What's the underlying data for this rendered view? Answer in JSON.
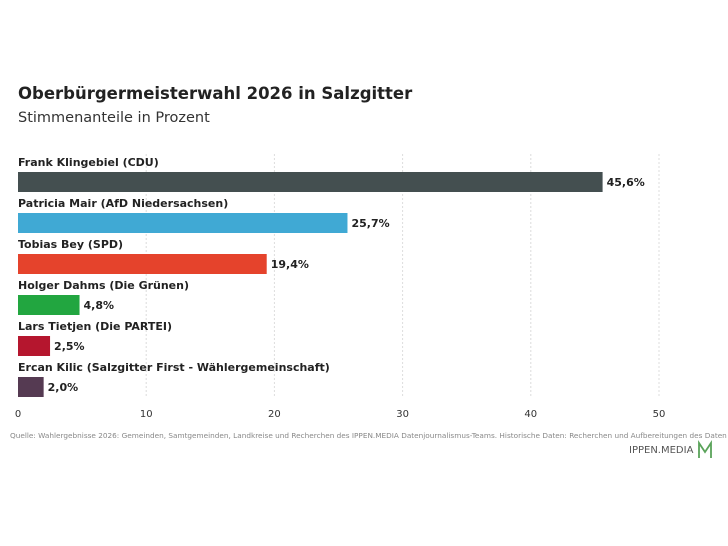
{
  "header": {
    "title": "Oberbürgermeisterwahl 2026 in Salzgitter",
    "subtitle": "Stimmenanteile in Prozent"
  },
  "footer": {
    "source": "Quelle: Wahlergebnisse 2026: Gemeinden, Samtgemeinden, Landkreise und Recherchen des IPPEN.MEDIA Datenjournalismus-Teams. Historische Daten: Recherchen und Aufbereitungen des Daten",
    "brand": "IPPEN.MEDIA"
  },
  "chart_data": {
    "type": "bar",
    "orientation": "horizontal",
    "categories": [
      "Frank Klingebiel (CDU)",
      "Patricia Mair (AfD Niedersachsen)",
      "Tobias Bey (SPD)",
      "Holger Dahms (Die Grünen)",
      "Lars Tietjen (Die PARTEI)",
      "Ercan Kilic (Salzgitter First - Wählergemeinschaft)"
    ],
    "values": [
      45.6,
      25.7,
      19.4,
      4.8,
      2.5,
      2.0
    ],
    "value_labels": [
      "45,6%",
      "25,7%",
      "19,4%",
      "4,8%",
      "2,5%",
      "2,0%"
    ],
    "colors": [
      "#444f50",
      "#40a9d4",
      "#e5432c",
      "#22a640",
      "#b5162e",
      "#553a52"
    ],
    "xlim": [
      0,
      50
    ],
    "xticks": [
      0,
      10,
      20,
      30,
      40,
      50
    ],
    "grid": true,
    "legend": "none"
  }
}
